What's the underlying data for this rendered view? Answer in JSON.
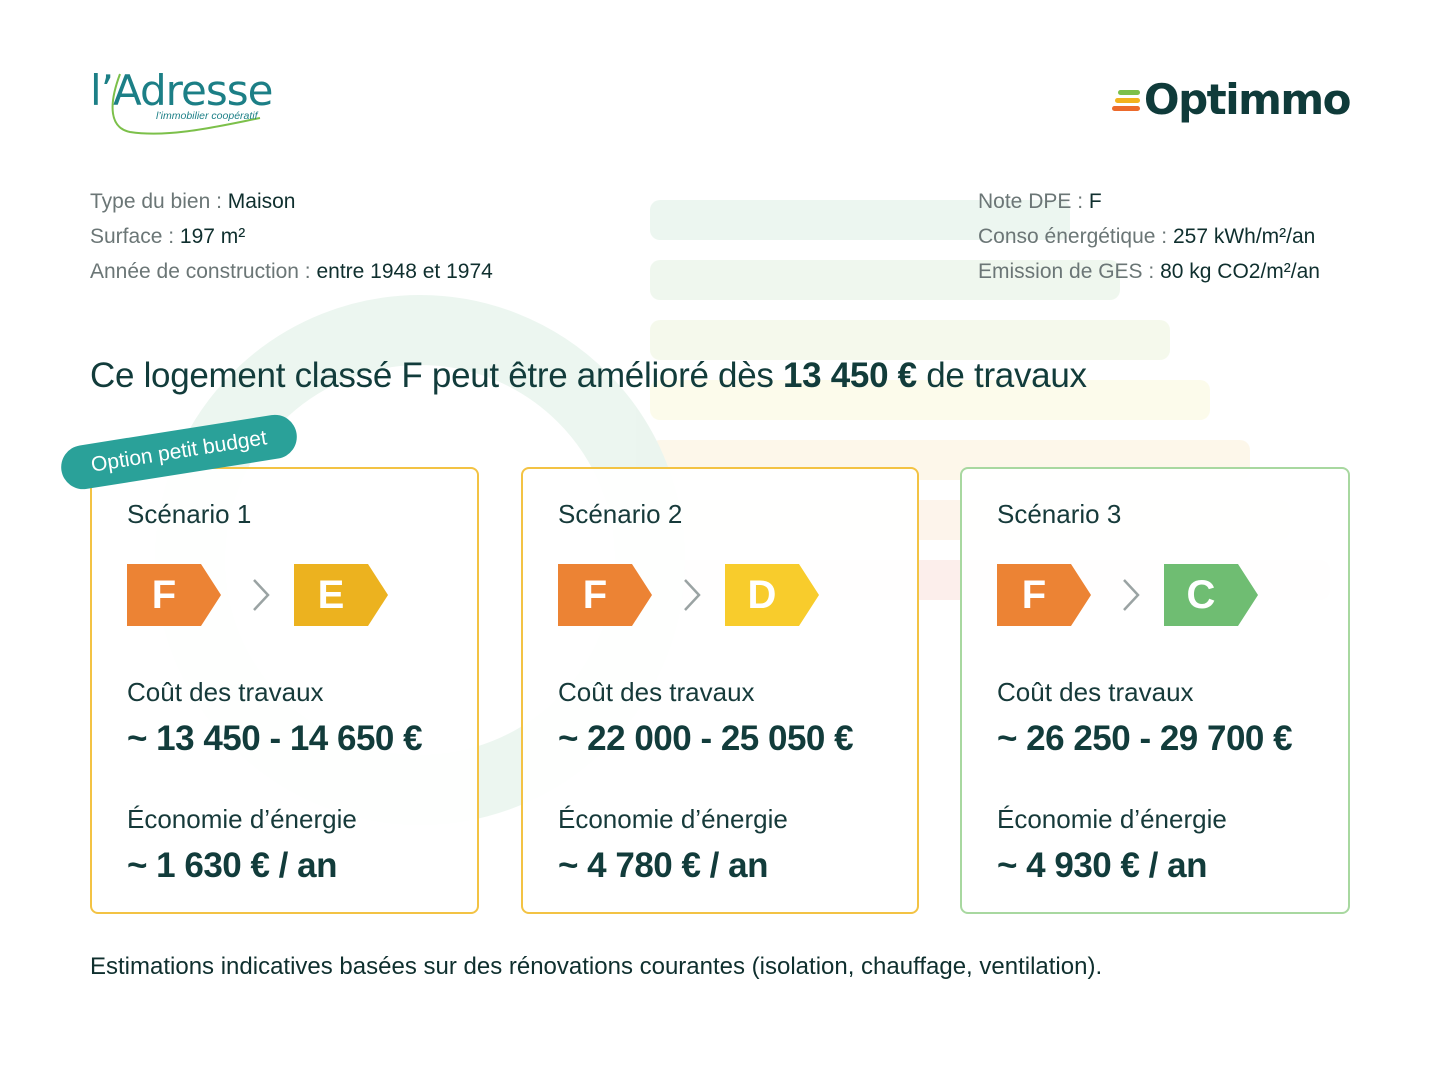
{
  "brand_left": {
    "name": "l’Adresse",
    "tagline": "l’immobilier coopératif"
  },
  "brand_right": {
    "name": "Optimmo"
  },
  "property": {
    "type": {
      "label": "Type du bien : ",
      "value": "Maison"
    },
    "surface": {
      "label": "Surface : ",
      "value": "197 m²"
    },
    "year": {
      "label": "Année de construction : ",
      "value": "entre 1948 et 1974"
    }
  },
  "energy": {
    "dpe": {
      "label": "Note DPE : ",
      "value": "F"
    },
    "conso": {
      "label": "Conso énergétique : ",
      "value": "257 kWh/m²/an"
    },
    "ges": {
      "label": "Emission de GES : ",
      "value": "80 kg CO2/m²/an"
    }
  },
  "headline": {
    "before": "Ce logement classé F peut être amélioré dès ",
    "amount": "13 450 €",
    "after": " de travaux"
  },
  "ribbon": "Option petit budget",
  "cost_label": "Coût des travaux",
  "saving_label": "Économie d’énergie",
  "scenarios": [
    {
      "title": "Scénario 1",
      "from": "F",
      "to": "E",
      "cost": "~ 13 450 - 14 650 €",
      "saving": "~ 1 630 € / an",
      "border": "#f3c344",
      "to_color": "#ecb21f"
    },
    {
      "title": "Scénario 2",
      "from": "F",
      "to": "D",
      "cost": "~ 22 000 - 25 050 €",
      "saving": "~ 4 780 € / an",
      "border": "#f3c344",
      "to_color": "#f8cc2c"
    },
    {
      "title": "Scénario 3",
      "from": "F",
      "to": "C",
      "cost": "~ 26 250 - 29 700 €",
      "saving": "~ 4 930 € / an",
      "border": "#a8d8a0",
      "to_color": "#6fbd72"
    }
  ],
  "colors": {
    "from_badge": "#ec8334",
    "primary": "#0f3b3a",
    "teal": "#2aa199"
  },
  "footer": "Estimations indicatives basées sur des rénovations courantes (isolation, chauffage, ventilation)."
}
